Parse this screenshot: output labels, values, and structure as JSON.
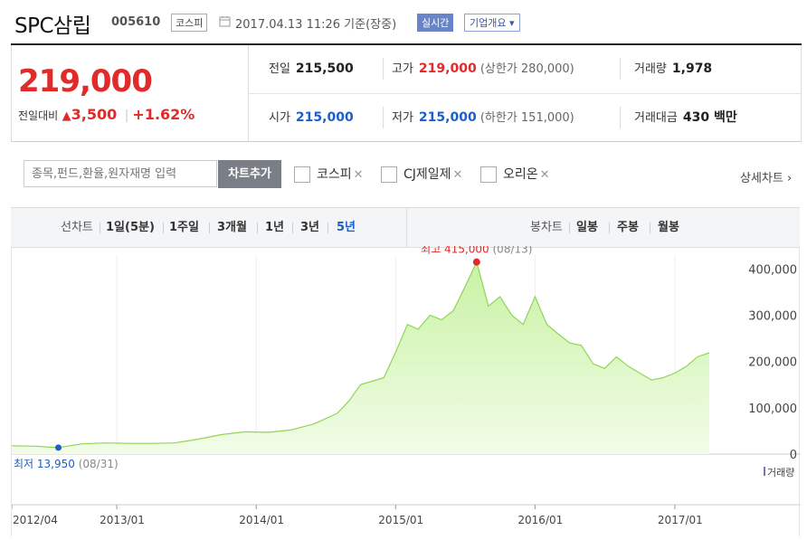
{
  "header": {
    "company_name": "SPC삼립",
    "stock_code": "005610",
    "market": "코스피",
    "datetime": "2017.04.13 11:26",
    "basis": "기준(장중)",
    "realtime_label": "실시간",
    "company_info_label": "기업개요 ▾"
  },
  "summary": {
    "current_price": "219,000",
    "change_label": "전일대비",
    "change_arrow": "▲",
    "change_amount": "3,500",
    "change_percent": "+1.62%",
    "prev_close": {
      "label": "전일",
      "value": "215,500"
    },
    "high": {
      "label": "고가",
      "value": "219,000",
      "note": "(상한가 280,000)"
    },
    "volume": {
      "label": "거래량",
      "value": "1,978"
    },
    "open": {
      "label": "시가",
      "value": "215,000"
    },
    "low": {
      "label": "저가",
      "value": "215,000",
      "note": "(하한가 151,000)"
    },
    "trade_value": {
      "label": "거래대금",
      "value": "430 백만"
    }
  },
  "compare": {
    "search_placeholder": "종목,펀드,환율,원자재명 입력",
    "add_button": "차트추가",
    "items": [
      {
        "label": "코스피"
      },
      {
        "label": "CJ제일제"
      },
      {
        "label": "오리온"
      }
    ],
    "close_glyph": "✕",
    "detail_link": "상세차트 ›"
  },
  "toolbar": {
    "line_label": "선차트",
    "line_periods": [
      "1일(5분)",
      "1주일",
      "3개월",
      "1년",
      "3년",
      "5년"
    ],
    "active_period": "5년",
    "candle_label": "봉차트",
    "candle_periods": [
      "일봉",
      "주봉",
      "월봉"
    ]
  },
  "colors": {
    "up": "#e12a2a",
    "down": "#1d5fc8",
    "area_line": "#8fd654",
    "area_fill": "#c9f2a4",
    "volume_bar": "#b9a6d8"
  },
  "chart_data": {
    "type": "area",
    "y_ticks": [
      "400,000",
      "300,000",
      "200,000",
      "100,000",
      "0"
    ],
    "y_tick_values": [
      400000,
      300000,
      200000,
      100000,
      0
    ],
    "ylim": [
      0,
      430000
    ],
    "x_tick_labels": [
      "2012/04",
      "2013/01",
      "2014/01",
      "2015/01",
      "2016/01",
      "2017/01"
    ],
    "x_tick_dates": [
      "2012-04",
      "2013-01",
      "2014-01",
      "2015-01",
      "2016-01",
      "2017-01"
    ],
    "max_label": "최고",
    "max_value": "415,000",
    "max_date": "(08/13)",
    "min_label": "최저",
    "min_value": "13,950",
    "min_date": "(08/31)",
    "volume_legend": "거래량",
    "series": [
      {
        "values": [
          [
            "2012-04",
            18000
          ],
          [
            "2012-06",
            17000
          ],
          [
            "2012-08",
            13950
          ],
          [
            "2012-10",
            22000
          ],
          [
            "2012-12",
            24000
          ],
          [
            "2013-02",
            23000
          ],
          [
            "2013-04",
            23000
          ],
          [
            "2013-06",
            24000
          ],
          [
            "2013-08",
            32000
          ],
          [
            "2013-10",
            42000
          ],
          [
            "2013-12",
            48000
          ],
          [
            "2014-02",
            47000
          ],
          [
            "2014-04",
            52000
          ],
          [
            "2014-06",
            65000
          ],
          [
            "2014-08",
            88000
          ],
          [
            "2014-09",
            115000
          ],
          [
            "2014-10",
            150000
          ],
          [
            "2014-12",
            165000
          ],
          [
            "2015-01",
            220000
          ],
          [
            "2015-02",
            280000
          ],
          [
            "2015-03",
            270000
          ],
          [
            "2015-04",
            300000
          ],
          [
            "2015-05",
            290000
          ],
          [
            "2015-06",
            310000
          ],
          [
            "2015-07",
            360000
          ],
          [
            "2015-08",
            415000
          ],
          [
            "2015-09",
            320000
          ],
          [
            "2015-10",
            340000
          ],
          [
            "2015-11",
            300000
          ],
          [
            "2015-12",
            280000
          ],
          [
            "2016-01",
            340000
          ],
          [
            "2016-02",
            280000
          ],
          [
            "2016-03",
            260000
          ],
          [
            "2016-04",
            240000
          ],
          [
            "2016-05",
            235000
          ],
          [
            "2016-06",
            195000
          ],
          [
            "2016-07",
            185000
          ],
          [
            "2016-08",
            210000
          ],
          [
            "2016-09",
            190000
          ],
          [
            "2016-10",
            175000
          ],
          [
            "2016-11",
            160000
          ],
          [
            "2016-12",
            165000
          ],
          [
            "2017-01",
            175000
          ],
          [
            "2017-02",
            190000
          ],
          [
            "2017-03",
            210000
          ],
          [
            "2017-04",
            219000
          ]
        ]
      }
    ]
  }
}
